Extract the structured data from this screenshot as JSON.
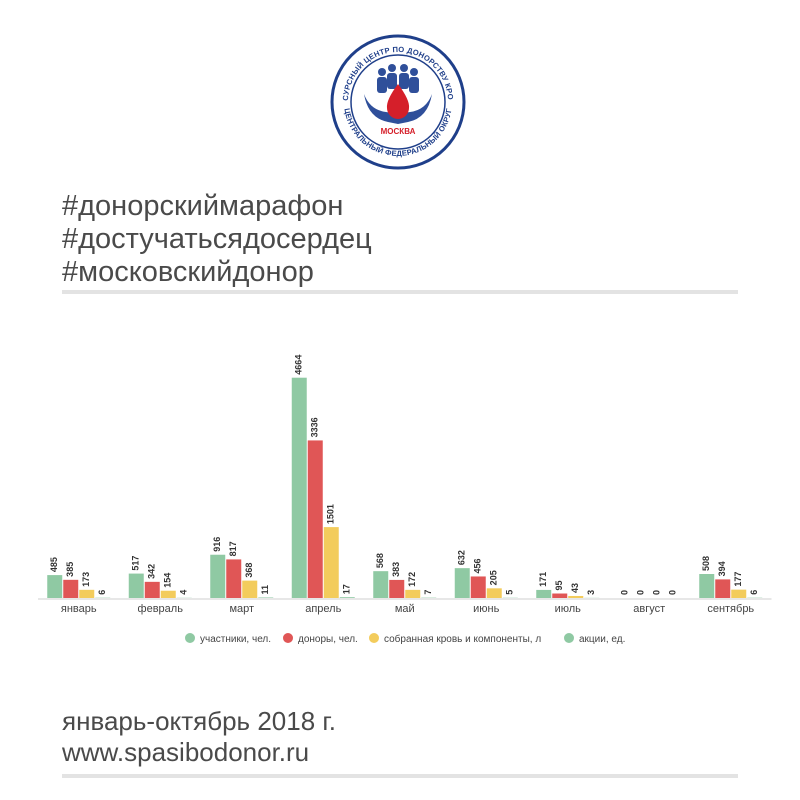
{
  "logo": {
    "ring_text_top": "РЕСУРСНЫЙ ЦЕНТР ПО ДОНОРСТВУ КРОВИ",
    "ring_text_bottom": "ЦЕНТРАЛЬНЫЙ ФЕДЕРАЛЬНЫЙ ОКРУГ",
    "city": "МОСКВА",
    "ring_color": "#1f3f8a",
    "drop_color": "#d51f2a"
  },
  "hashtags": [
    "#донорскиймарафон",
    "#достучатьсядосердец",
    "#московскийдонор"
  ],
  "footer": {
    "period": "январь-октябрь 2018 г.",
    "site": "www.spasibodonor.ru"
  },
  "chart_data": {
    "type": "bar",
    "categories": [
      "январь",
      "февраль",
      "март",
      "апрель",
      "май",
      "июнь",
      "июль",
      "август",
      "сентябрь"
    ],
    "series": [
      {
        "name": "участники, чел.",
        "color": "#8fc9a3",
        "values": [
          485,
          517,
          916,
          4664,
          568,
          632,
          171,
          0,
          508
        ]
      },
      {
        "name": "доноры, чел.",
        "color": "#e05656",
        "values": [
          385,
          342,
          817,
          3336,
          383,
          456,
          95,
          0,
          394
        ]
      },
      {
        "name": "собранная кровь и компоненты, л",
        "color": "#f3cc5c",
        "values": [
          173,
          154,
          368,
          1501,
          172,
          205,
          43,
          0,
          177
        ]
      },
      {
        "name": "акции, ед.",
        "color": "#8fc9a3",
        "values": [
          6,
          4,
          11,
          17,
          7,
          5,
          3,
          0,
          6
        ]
      }
    ],
    "legend_position": "bottom",
    "grid": false,
    "ylim": [
      0,
      4700
    ]
  }
}
